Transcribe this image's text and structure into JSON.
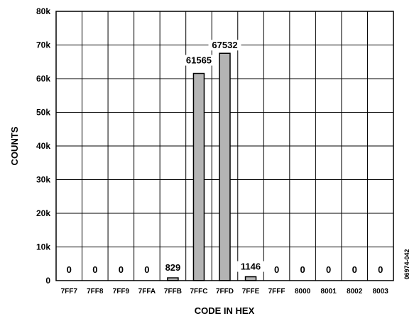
{
  "chart_data": {
    "type": "bar",
    "categories": [
      "7FF7",
      "7FF8",
      "7FF9",
      "7FFA",
      "7FFB",
      "7FFC",
      "7FFD",
      "7FFE",
      "7FFF",
      "8000",
      "8001",
      "8002",
      "8003"
    ],
    "values": [
      0,
      0,
      0,
      0,
      829,
      61565,
      67532,
      1146,
      0,
      0,
      0,
      0,
      0
    ],
    "data_labels": [
      "0",
      "0",
      "0",
      "0",
      "829",
      "61565",
      "67532",
      "1146",
      "0",
      "0",
      "0",
      "0",
      "0"
    ],
    "xlabel": "CODE IN HEX",
    "ylabel": "COUNTS",
    "ylim": [
      0,
      80000
    ],
    "yticks": [
      0,
      10000,
      20000,
      30000,
      40000,
      50000,
      60000,
      70000,
      80000
    ],
    "ytick_labels": [
      "0",
      "10k",
      "20k",
      "30k",
      "40k",
      "50k",
      "60k",
      "70k",
      "80k"
    ],
    "grid": true,
    "bar_color": "#b4b4b4"
  },
  "figure_code": "06974-042"
}
